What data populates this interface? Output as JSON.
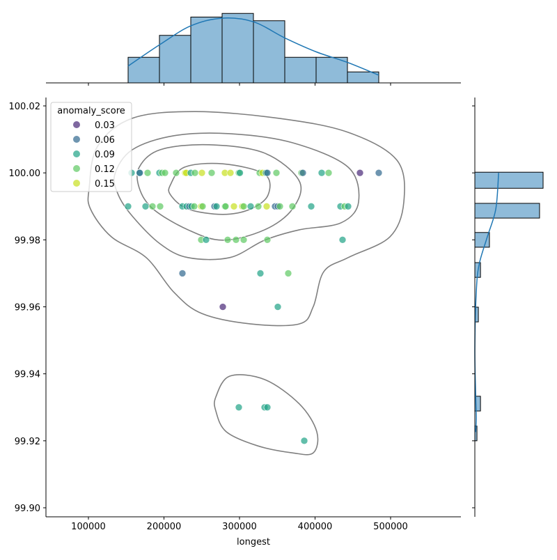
{
  "chart_data": {
    "type": "scatter",
    "subtype": "jointplot",
    "xlabel": "longest",
    "ylabel": "",
    "xlim": [
      43779,
      593088
    ],
    "ylim": [
      99.8973,
      100.0225
    ],
    "x_ticks": [
      100000,
      200000,
      300000,
      400000,
      500000
    ],
    "x_tick_labels": [
      "100000",
      "200000",
      "300000",
      "400000",
      "500000"
    ],
    "y_ticks": [
      99.9,
      99.92,
      99.94,
      99.96,
      99.98,
      100.0,
      100.02
    ],
    "y_tick_labels": [
      "99.90",
      "99.92",
      "99.94",
      "99.96",
      "99.98",
      "100.00",
      "100.02"
    ],
    "grid": false,
    "legend": {
      "title": "anomaly_score",
      "placement": "top-left",
      "entries": [
        {
          "label": "0.03",
          "value": 0.03,
          "color": "#482878"
        },
        {
          "label": "0.06",
          "value": 0.06,
          "color": "#31688e"
        },
        {
          "label": "0.09",
          "value": 0.09,
          "color": "#20a386"
        },
        {
          "label": "0.12",
          "value": 0.12,
          "color": "#5ec962"
        },
        {
          "label": "0.15",
          "value": 0.15,
          "color": "#c8e020"
        }
      ]
    },
    "points_columns": [
      "longest",
      "y",
      "anomaly_score"
    ],
    "points": [
      [
        157143,
        100.0,
        0.09
      ],
      [
        167281,
        100.0,
        0.09
      ],
      [
        168000,
        100.0,
        0.06
      ],
      [
        178341,
        100.0,
        0.12
      ],
      [
        194000,
        100.0,
        0.09
      ],
      [
        197500,
        100.0,
        0.12
      ],
      [
        201382,
        100.0,
        0.12
      ],
      [
        216129,
        100.0,
        0.12
      ],
      [
        228111,
        100.0,
        0.15
      ],
      [
        229500,
        100.0,
        0.15
      ],
      [
        235484,
        100.0,
        0.09
      ],
      [
        241014,
        100.0,
        0.12
      ],
      [
        250230,
        100.0,
        0.15
      ],
      [
        263134,
        100.0,
        0.12
      ],
      [
        280645,
        100.0,
        0.15
      ],
      [
        288018,
        100.0,
        0.15
      ],
      [
        299078,
        100.0,
        0.12
      ],
      [
        300500,
        100.0,
        0.09
      ],
      [
        326728,
        100.0,
        0.12
      ],
      [
        330415,
        100.0,
        0.15
      ],
      [
        335023,
        100.0,
        0.09
      ],
      [
        336866,
        100.0,
        0.06
      ],
      [
        348848,
        100.0,
        0.12
      ],
      [
        382028,
        100.0,
        0.12
      ],
      [
        383871,
        100.0,
        0.06
      ],
      [
        408756,
        100.0,
        0.09
      ],
      [
        417972,
        100.0,
        0.12
      ],
      [
        459447,
        100.0,
        0.03
      ],
      [
        484332,
        100.0,
        0.06
      ],
      [
        152535,
        99.99,
        0.09
      ],
      [
        175576,
        99.99,
        0.09
      ],
      [
        184793,
        99.99,
        0.12
      ],
      [
        194931,
        99.99,
        0.12
      ],
      [
        224424,
        99.99,
        0.09
      ],
      [
        229954,
        99.99,
        0.09
      ],
      [
        233641,
        99.99,
        0.06
      ],
      [
        236406,
        99.99,
        0.09
      ],
      [
        240092,
        99.99,
        0.12
      ],
      [
        249309,
        99.99,
        0.15
      ],
      [
        251152,
        99.99,
        0.12
      ],
      [
        266820,
        99.99,
        0.06
      ],
      [
        269585,
        99.99,
        0.09
      ],
      [
        280645,
        99.99,
        0.12
      ],
      [
        281500,
        99.99,
        0.12
      ],
      [
        292627,
        99.99,
        0.15
      ],
      [
        303687,
        99.99,
        0.15
      ],
      [
        305530,
        99.99,
        0.12
      ],
      [
        314747,
        99.99,
        0.09
      ],
      [
        324885,
        99.99,
        0.12
      ],
      [
        335945,
        99.99,
        0.15
      ],
      [
        347005,
        99.99,
        0.06
      ],
      [
        350691,
        99.99,
        0.06
      ],
      [
        353456,
        99.99,
        0.12
      ],
      [
        370046,
        99.99,
        0.12
      ],
      [
        394931,
        99.99,
        0.09
      ],
      [
        433641,
        99.99,
        0.09
      ],
      [
        439171,
        99.99,
        0.12
      ],
      [
        443779,
        99.99,
        0.09
      ],
      [
        249309,
        99.98,
        0.12
      ],
      [
        255760,
        99.98,
        0.09
      ],
      [
        284332,
        99.98,
        0.12
      ],
      [
        295392,
        99.98,
        0.12
      ],
      [
        305530,
        99.98,
        0.12
      ],
      [
        336866,
        99.98,
        0.12
      ],
      [
        436406,
        99.98,
        0.09
      ],
      [
        224424,
        99.97,
        0.06
      ],
      [
        327650,
        99.97,
        0.09
      ],
      [
        364516,
        99.97,
        0.12
      ],
      [
        277880,
        99.96,
        0.03
      ],
      [
        350691,
        99.96,
        0.09
      ],
      [
        299078,
        99.93,
        0.09
      ],
      [
        333180,
        99.93,
        0.09
      ],
      [
        336866,
        99.93,
        0.09
      ],
      [
        385714,
        99.92,
        0.09
      ]
    ],
    "kde_contours": [
      [
        [
          101000,
          99.9955
        ],
        [
          112000,
          100.0079
        ],
        [
          158065,
          100.0163
        ],
        [
          241014,
          100.0183
        ],
        [
          351613,
          100.0163
        ],
        [
          443779,
          100.0121
        ],
        [
          508295,
          100.0038
        ],
        [
          517512,
          99.9913
        ],
        [
          499079,
          99.9809
        ],
        [
          443779,
          99.9747
        ],
        [
          411521,
          99.9705
        ],
        [
          397696,
          99.9601
        ],
        [
          379263,
          99.9549
        ],
        [
          314747,
          99.9549
        ],
        [
          250230,
          99.958
        ],
        [
          213364,
          99.9643
        ],
        [
          176498,
          99.9747
        ],
        [
          130415,
          99.9809
        ],
        [
          102765,
          99.9892
        ]
      ],
      [
        [
          135023,
          99.9996
        ],
        [
          158065,
          100.0069
        ],
        [
          213364,
          100.0111
        ],
        [
          287097,
          100.0117
        ],
        [
          370046,
          100.009
        ],
        [
          443779,
          100.0017
        ],
        [
          457604,
          99.9913
        ],
        [
          434562,
          99.9851
        ],
        [
          379263,
          99.983
        ],
        [
          333180,
          99.9799
        ],
        [
          287097,
          99.9747
        ],
        [
          231797,
          99.9747
        ],
        [
          194931,
          99.9788
        ],
        [
          158065,
          99.9871
        ],
        [
          139631,
          99.9934
        ]
      ],
      [
        [
          167281,
          100.0017
        ],
        [
          194931,
          100.0069
        ],
        [
          259447,
          100.0084
        ],
        [
          333180,
          100.0059
        ],
        [
          379263,
          99.9975
        ],
        [
          370046,
          99.9892
        ],
        [
          333180,
          99.983
        ],
        [
          277880,
          99.9799
        ],
        [
          231797,
          99.983
        ],
        [
          185714,
          99.9892
        ],
        [
          167281,
          99.9955
        ]
      ],
      [
        [
          208756,
          99.9965
        ],
        [
          227189,
          100.0017
        ],
        [
          277880,
          100.0027
        ],
        [
          333180,
          99.9996
        ],
        [
          337788,
          99.9934
        ],
        [
          314747,
          99.9892
        ],
        [
          277880,
          99.9876
        ],
        [
          231797,
          99.9892
        ],
        [
          208756,
          99.9934
        ]
      ],
      [
        [
          268664,
          99.9331
        ],
        [
          287097,
          99.9393
        ],
        [
          333180,
          99.9383
        ],
        [
          379263,
          99.931
        ],
        [
          402304,
          99.9227
        ],
        [
          397696,
          99.9164
        ],
        [
          370046,
          99.9164
        ],
        [
          323963,
          99.9185
        ],
        [
          282488,
          99.9227
        ],
        [
          268664,
          99.9289
        ]
      ]
    ],
    "top_histogram": {
      "bin_edges": [
        152535,
        194010,
        235485,
        276960,
        318435,
        359910,
        401385,
        442860,
        484335
      ],
      "counts": [
        7,
        13,
        18,
        19,
        17,
        7,
        7,
        3
      ],
      "kde": [
        [
          152535,
          4.6
        ],
        [
          194010,
          10.4
        ],
        [
          235485,
          15.6
        ],
        [
          276960,
          17.7
        ],
        [
          318435,
          16.7
        ],
        [
          359910,
          12.3
        ],
        [
          401385,
          8.5
        ],
        [
          442860,
          5.6
        ],
        [
          484335,
          2.1
        ]
      ],
      "color": "#1f77b4"
    },
    "right_histogram": {
      "bins": [
        [
          99.9954,
          100.0002
        ],
        [
          99.9865,
          99.9909
        ],
        [
          99.9778,
          99.9822
        ],
        [
          99.9688,
          99.9732
        ],
        [
          99.9555,
          99.9599
        ],
        [
          99.9289,
          99.9333
        ],
        [
          99.92,
          99.9244
        ]
      ],
      "counts": [
        29,
        27.5,
        6.2,
        2.4,
        1.5,
        2.4,
        0.9
      ],
      "kde": [
        [
          100.0,
          10.1
        ],
        [
          99.9892,
          8.9
        ],
        [
          99.9809,
          5.3
        ],
        [
          99.9726,
          1.8
        ],
        [
          99.9643,
          0.6
        ],
        [
          99.9476,
          0
        ],
        [
          99.9351,
          0.3
        ],
        [
          99.9268,
          0.6
        ],
        [
          99.9226,
          0.3
        ]
      ],
      "color": "#1f77b4"
    }
  }
}
